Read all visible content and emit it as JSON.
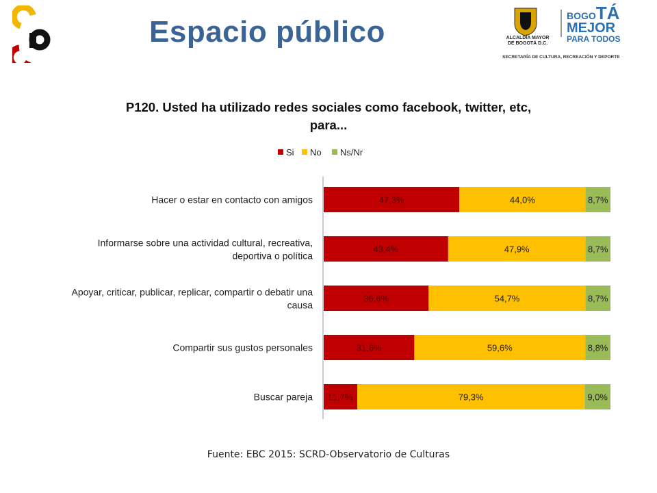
{
  "header": {
    "title": "Espacio público",
    "logo_left_letters": "cb",
    "logo_right": {
      "alcaldia_line1": "ALCALDÍA MAYOR",
      "alcaldia_line2": "DE BOGOTÁ D.C.",
      "bogota_prefix": "BOGO",
      "bogota_suffix": "TÁ",
      "mejor": "MEJOR",
      "para_todos": "PARA TODOS",
      "secretaria": "SECRETARÍA DE CULTURA, RECREACIÓN Y DEPORTE"
    }
  },
  "chart_data": {
    "type": "bar",
    "orientation": "horizontal",
    "stacked": true,
    "title_line1": "P120. Usted ha utilizado redes sociales como facebook, twitter, etc,",
    "title_line2": "para...",
    "categories": [
      "Hacer o estar en contacto con amigos",
      "Informarse sobre una actividad cultural, recreativa, deportiva o política",
      "Apoyar, criticar, publicar, replicar, compartir o debatir una causa",
      "Compartir sus gustos personales",
      "Buscar pareja"
    ],
    "category_lines": [
      [
        "Hacer o estar en contacto con amigos"
      ],
      [
        "Informarse sobre una actividad cultural, recreativa,",
        "deportiva o política"
      ],
      [
        "Apoyar, criticar, publicar, replicar, compartir o debatir una",
        "causa"
      ],
      [
        "Compartir sus gustos personales"
      ],
      [
        "Buscar pareja"
      ]
    ],
    "series": [
      {
        "name": "Si",
        "color": "#c00000",
        "values": [
          47.3,
          43.4,
          36.6,
          31.6,
          11.7
        ],
        "labels": [
          "47,3%",
          "43,4%",
          "36,6%",
          "31,6%",
          "11,7%"
        ]
      },
      {
        "name": "No",
        "color": "#ffc000",
        "values": [
          44.0,
          47.9,
          54.7,
          59.6,
          79.3
        ],
        "labels": [
          "44,0%",
          "47,9%",
          "54,7%",
          "59,6%",
          "79,3%"
        ]
      },
      {
        "name": "Ns/Nr",
        "color": "#9bbb59",
        "values": [
          8.7,
          8.7,
          8.7,
          8.8,
          9.0
        ],
        "labels": [
          "8,7%",
          "8,7%",
          "8,7%",
          "8,8%",
          "9,0%"
        ]
      }
    ],
    "xlim": [
      0,
      100
    ],
    "legend": "top",
    "grid": false
  },
  "footer": {
    "source": "Fuente: EBC 2015: SCRD-Observatorio de Culturas"
  }
}
